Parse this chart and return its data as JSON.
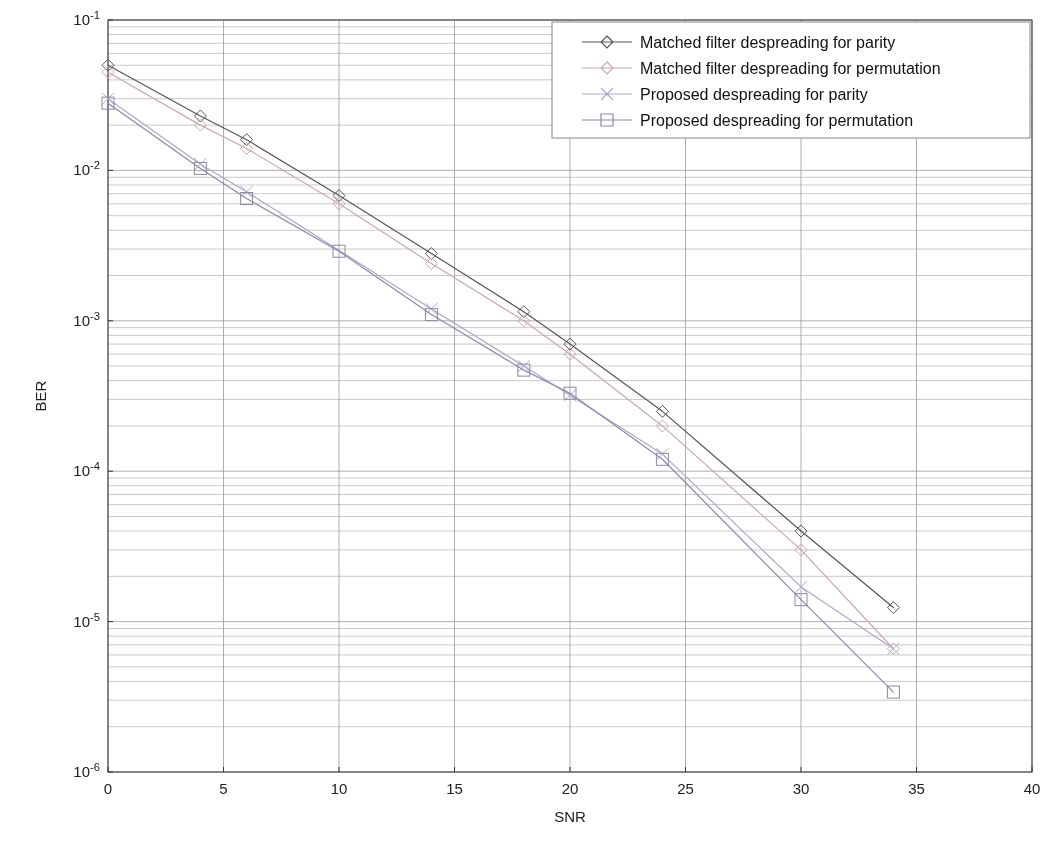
{
  "chart_data": {
    "type": "line",
    "xlabel": "SNR",
    "ylabel": "BER",
    "log": "y",
    "grid": true,
    "legend": "top right",
    "xlim": [
      0,
      40
    ],
    "xticks": [
      0,
      5,
      10,
      15,
      20,
      25,
      30,
      35,
      40
    ],
    "ylim": [
      1e-06,
      0.1
    ],
    "yticks": [
      {
        "value": 1e-06,
        "label": "10$^{-6}$"
      },
      {
        "value": 1e-05,
        "label": "10$^{-5}$"
      },
      {
        "value": 0.0001,
        "label": "10$^{-4}$"
      },
      {
        "value": 0.001,
        "label": "10$^{-3}$"
      },
      {
        "value": 0.01,
        "label": "10$^{-2}$"
      },
      {
        "value": 0.1,
        "label": "10$^{-1}$"
      }
    ],
    "x": [
      0,
      4,
      6,
      10,
      14,
      18,
      20,
      24,
      30,
      34
    ],
    "series": [
      {
        "name": "Matched filter despreading for parity",
        "color": "#555555",
        "marker": "diamond",
        "values": [
          0.05,
          0.023,
          0.016,
          0.0068,
          0.0028,
          0.00115,
          0.0007,
          0.00025,
          4e-05,
          1.24e-05
        ]
      },
      {
        "name": "Matched filter despreading for permutation",
        "color": "#c9a9a9",
        "marker": "diamond",
        "values": [
          0.045,
          0.02,
          0.014,
          0.006,
          0.0024,
          0.001,
          0.0006,
          0.0002,
          3e-05,
          6.6e-06
        ]
      },
      {
        "name": "Proposed despreading for parity",
        "color": "#a9a9c9",
        "marker": "cross",
        "values": [
          0.03,
          0.011,
          0.0072,
          null,
          0.0012,
          0.0005,
          0.00032,
          0.00013,
          1.7e-05,
          6.6e-06
        ]
      },
      {
        "name": "Proposed despreading for permutation",
        "color": "#8a8aa8",
        "marker": "square",
        "values": [
          0.028,
          0.0103,
          0.0065,
          0.0029,
          0.0011,
          0.00047,
          0.00033,
          0.00012,
          1.4e-05,
          3.4e-06
        ]
      }
    ]
  }
}
